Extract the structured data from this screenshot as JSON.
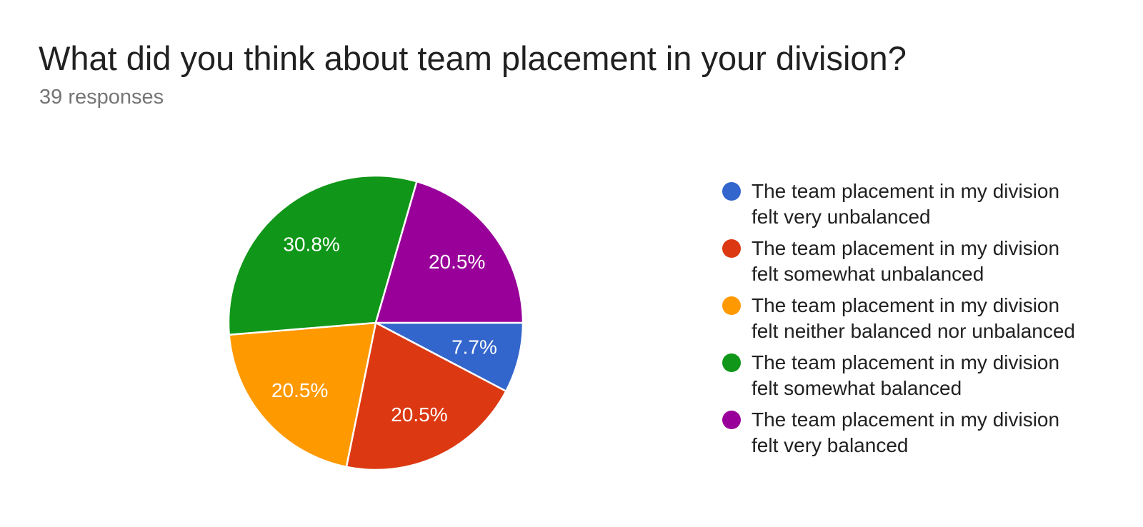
{
  "chart_data": {
    "type": "pie",
    "title": "What did you think about team placement in your division?",
    "subtitle": "39 responses",
    "legend_position": "right",
    "start_angle": "3-oclock-clockwise",
    "slice_label_color": "#ffffff",
    "slices": [
      {
        "label": "The team placement in my division felt very unbalanced",
        "value_pct": 7.7,
        "color": "#3366CC"
      },
      {
        "label": "The team placement in my division felt somewhat unbalanced",
        "value_pct": 20.5,
        "color": "#DC3912"
      },
      {
        "label": "The team placement in my division felt neither balanced nor unbalanced",
        "value_pct": 20.5,
        "color": "#FF9900"
      },
      {
        "label": "The team placement in my division felt somewhat balanced",
        "value_pct": 30.8,
        "color": "#109618"
      },
      {
        "label": "The team placement in my division felt very balanced",
        "value_pct": 20.5,
        "color": "#990099"
      }
    ]
  }
}
